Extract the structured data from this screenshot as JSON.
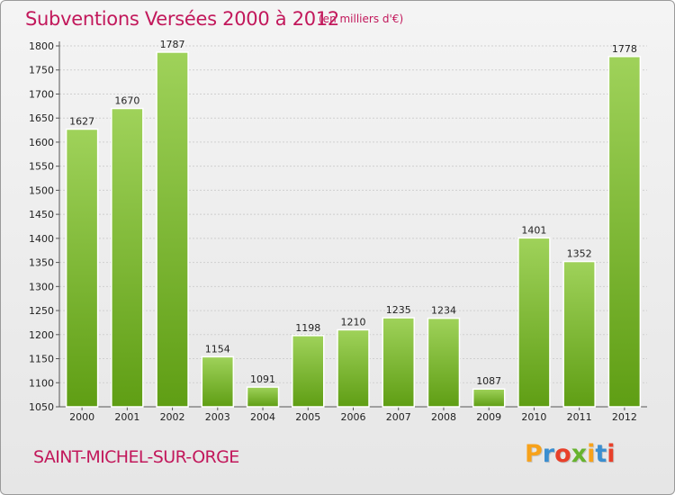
{
  "header": {
    "title": "Subventions Versées 2000 à 2012",
    "subtitle": "(en milliers d'€)"
  },
  "footer": {
    "place": "SAINT-MICHEL-SUR-ORGE",
    "logo": [
      "P",
      "r",
      "o",
      "x",
      "i",
      "t",
      "i"
    ],
    "logo_colors": [
      "#f7a21b",
      "#3b8ed0",
      "#e8402a",
      "#66b32e",
      "#f7a21b",
      "#3b8ed0",
      "#e8402a"
    ]
  },
  "colors": {
    "bar_top": "#9fd25a",
    "bar_bottom": "#5f9e14",
    "bar_highlight": "#b9e07a",
    "grid": "#cfcfcf"
  },
  "chart_data": {
    "type": "bar",
    "categories": [
      "2000",
      "2001",
      "2002",
      "2003",
      "2004",
      "2005",
      "2006",
      "2007",
      "2008",
      "2009",
      "2010",
      "2011",
      "2012"
    ],
    "values": [
      1627,
      1670,
      1787,
      1154,
      1091,
      1198,
      1210,
      1235,
      1234,
      1087,
      1401,
      1352,
      1778
    ],
    "title": "Subventions Versées 2000 à 2012",
    "subtitle": "(en milliers d'€)",
    "ylim": [
      1050,
      1800
    ],
    "yticks": [
      1050,
      1100,
      1150,
      1200,
      1250,
      1300,
      1350,
      1400,
      1450,
      1500,
      1550,
      1600,
      1650,
      1700,
      1750,
      1800
    ],
    "grid": true,
    "legend": "none"
  }
}
